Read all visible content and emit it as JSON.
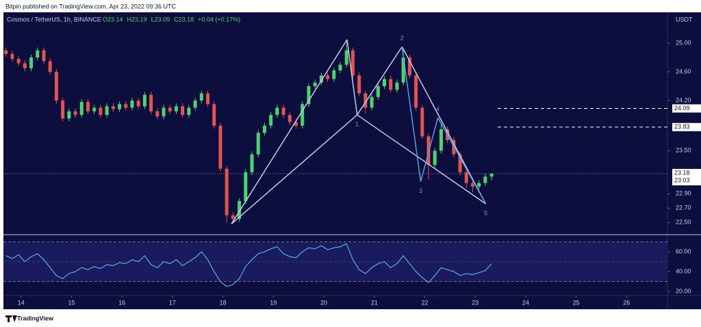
{
  "header": {
    "text": "Bitpin published on TradingView.com, Apr 23, 2022 09:36 UTC"
  },
  "footer": {
    "brand": "TradingView"
  },
  "chart_data": [
    {
      "type": "candlestick",
      "symbol": "Cosmos / TetherUS, 1h, BINANCE",
      "legend_values": [
        "O23.14",
        "H23.19",
        "L23.09",
        "C23.18",
        "+0.04 (+0.17%)"
      ],
      "currency": "USDT",
      "up_color": "#4cd46c",
      "down_color": "#e5524f",
      "xlim": [
        13.65,
        26.81
      ],
      "ylim": [
        22.34,
        25.43
      ],
      "yticks": [
        {
          "value": 22.5,
          "label": "22.50"
        },
        {
          "value": 22.7,
          "label": "22.70"
        },
        {
          "value": 22.9,
          "label": "22.90"
        },
        {
          "value": 23.5,
          "label": "23.50"
        },
        {
          "value": 24.2,
          "label": "24.20"
        },
        {
          "value": 24.6,
          "label": "24.60"
        },
        {
          "value": 25,
          "label": "25.00"
        }
      ],
      "levels": [
        24.09,
        23.83
      ],
      "last_price": 23.18,
      "countdown": "23:03",
      "x": [
        13.7,
        13.825,
        13.95,
        14.075,
        14.2,
        14.325,
        14.45,
        14.575,
        14.7,
        14.825,
        14.95,
        15.075,
        15.2,
        15.325,
        15.45,
        15.575,
        15.7,
        15.825,
        15.95,
        16.075,
        16.2,
        16.325,
        16.45,
        16.575,
        16.7,
        16.825,
        16.95,
        17.075,
        17.2,
        17.325,
        17.45,
        17.575,
        17.7,
        17.825,
        17.95,
        18.075,
        18.2,
        18.325,
        18.45,
        18.575,
        18.7,
        18.825,
        18.95,
        19.075,
        19.2,
        19.325,
        19.45,
        19.575,
        19.7,
        19.825,
        19.95,
        20.075,
        20.2,
        20.325,
        20.45,
        20.575,
        20.7,
        20.825,
        20.95,
        21.075,
        21.2,
        21.325,
        21.45,
        21.575,
        21.7,
        21.825,
        21.95,
        22.075,
        22.2,
        22.325,
        22.45,
        22.575,
        22.7,
        22.825,
        22.95,
        23.075,
        23.2,
        23.325
      ],
      "open": [
        24.9,
        24.85,
        24.78,
        24.72,
        24.65,
        24.8,
        24.9,
        24.75,
        24.6,
        24.2,
        23.95,
        24.05,
        24.0,
        24.18,
        24.05,
        24.1,
        24.0,
        24.12,
        24.08,
        24.15,
        24.1,
        24.2,
        24.12,
        24.28,
        24.05,
        23.98,
        24.1,
        24.05,
        24.12,
        24.0,
        24.1,
        24.2,
        24.3,
        24.15,
        23.85,
        23.25,
        22.6,
        22.55,
        22.8,
        23.2,
        23.45,
        23.75,
        23.85,
        24.0,
        24.1,
        24.0,
        23.9,
        23.85,
        24.15,
        24.4,
        24.45,
        24.55,
        24.5,
        24.62,
        24.7,
        24.9,
        24.55,
        24.3,
        24.1,
        24.25,
        24.4,
        24.5,
        24.35,
        24.45,
        24.8,
        24.55,
        24.1,
        23.7,
        23.3,
        23.5,
        23.8,
        23.65,
        23.45,
        23.2,
        23.05,
        23.0,
        23.05,
        23.14
      ],
      "high": [
        24.94,
        24.89,
        24.82,
        24.76,
        24.84,
        24.94,
        24.94,
        24.79,
        24.64,
        24.24,
        24.09,
        24.09,
        24.22,
        24.22,
        24.14,
        24.14,
        24.16,
        24.16,
        24.19,
        24.19,
        24.24,
        24.24,
        24.32,
        24.32,
        24.09,
        24.14,
        24.14,
        24.16,
        24.16,
        24.14,
        24.24,
        24.34,
        24.34,
        24.19,
        23.89,
        23.29,
        22.64,
        22.84,
        23.24,
        23.49,
        23.79,
        23.89,
        24.04,
        24.14,
        24.14,
        24.04,
        23.94,
        24.19,
        24.44,
        24.49,
        24.59,
        24.59,
        24.66,
        24.74,
        25.02,
        24.94,
        24.59,
        24.34,
        24.29,
        24.44,
        24.54,
        24.54,
        24.49,
        24.92,
        24.84,
        24.59,
        24.14,
        23.74,
        23.54,
        23.88,
        23.84,
        23.69,
        23.49,
        23.24,
        23.09,
        23.09,
        23.18,
        23.19
      ],
      "low": [
        24.81,
        24.74,
        24.68,
        24.61,
        24.61,
        24.76,
        24.71,
        24.56,
        24.16,
        23.91,
        23.91,
        23.96,
        23.96,
        24.01,
        24.01,
        23.96,
        23.96,
        24.04,
        24.04,
        24.06,
        24.06,
        24.08,
        24.08,
        24.01,
        23.94,
        23.94,
        24.01,
        24.01,
        23.96,
        23.96,
        24.06,
        24.16,
        24.11,
        23.81,
        23.21,
        22.5,
        22.51,
        22.51,
        22.76,
        23.16,
        23.41,
        23.71,
        23.81,
        23.96,
        23.96,
        23.86,
        23.81,
        23.81,
        24.11,
        24.36,
        24.41,
        24.46,
        24.46,
        24.58,
        24.66,
        24.51,
        24.26,
        24.02,
        24.06,
        24.21,
        24.36,
        24.31,
        24.31,
        24.41,
        24.51,
        24.06,
        23.66,
        23.1,
        23.26,
        23.46,
        23.61,
        23.41,
        23.16,
        22.98,
        22.92,
        22.96,
        23.01,
        23.09
      ],
      "close": [
        24.85,
        24.78,
        24.72,
        24.65,
        24.8,
        24.9,
        24.75,
        24.6,
        24.2,
        23.95,
        24.05,
        24.0,
        24.18,
        24.05,
        24.1,
        24.0,
        24.12,
        24.08,
        24.15,
        24.1,
        24.2,
        24.12,
        24.28,
        24.05,
        23.98,
        24.1,
        24.05,
        24.12,
        24.0,
        24.1,
        24.2,
        24.3,
        24.15,
        23.85,
        23.25,
        22.6,
        22.55,
        22.8,
        23.2,
        23.45,
        23.75,
        23.85,
        24.0,
        24.1,
        24.0,
        23.9,
        23.85,
        24.15,
        24.4,
        24.45,
        24.55,
        24.5,
        24.62,
        24.7,
        24.9,
        24.55,
        24.3,
        24.1,
        24.25,
        24.4,
        24.5,
        24.35,
        24.45,
        24.8,
        24.55,
        24.1,
        23.7,
        23.3,
        23.5,
        23.8,
        23.65,
        23.45,
        23.2,
        23.05,
        23.0,
        23.05,
        23.14,
        23.18
      ],
      "pattern": {
        "points": [
          {
            "x": 18.17,
            "y": 22.48
          },
          {
            "x": 20.46,
            "y": 25.05
          },
          {
            "x": 20.66,
            "y": 24.0,
            "label": "1"
          },
          {
            "x": 21.55,
            "y": 24.95,
            "label": "2"
          },
          {
            "x": 21.92,
            "y": 23.07,
            "label": "3"
          },
          {
            "x": 22.26,
            "y": 23.96,
            "label": "4"
          },
          {
            "x": 23.21,
            "y": 22.76,
            "label": "5"
          }
        ]
      }
    },
    {
      "type": "line",
      "color": "#4fa3e0",
      "xlim": [
        13.65,
        26.81
      ],
      "xticks": [
        14,
        15,
        16,
        17,
        18,
        19,
        20,
        21,
        22,
        23,
        24,
        25,
        26
      ],
      "ylim": [
        15.9,
        76.5
      ],
      "yticks": [
        {
          "value": 20,
          "label": "20.00"
        },
        {
          "value": 40,
          "label": "40.00"
        },
        {
          "value": 60,
          "label": "60.00"
        }
      ],
      "band": [
        30,
        70
      ],
      "x": [
        13.7,
        13.825,
        13.95,
        14.075,
        14.2,
        14.325,
        14.45,
        14.575,
        14.7,
        14.825,
        14.95,
        15.075,
        15.2,
        15.325,
        15.45,
        15.575,
        15.7,
        15.825,
        15.95,
        16.075,
        16.2,
        16.325,
        16.45,
        16.575,
        16.7,
        16.825,
        16.95,
        17.075,
        17.2,
        17.325,
        17.45,
        17.575,
        17.7,
        17.825,
        17.95,
        18.075,
        18.2,
        18.325,
        18.45,
        18.575,
        18.7,
        18.825,
        18.95,
        19.075,
        19.2,
        19.325,
        19.45,
        19.575,
        19.7,
        19.825,
        19.95,
        20.075,
        20.2,
        20.325,
        20.45,
        20.575,
        20.7,
        20.825,
        20.95,
        21.075,
        21.2,
        21.325,
        21.45,
        21.575,
        21.7,
        21.825,
        21.95,
        22.075,
        22.2,
        22.325,
        22.45,
        22.575,
        22.7,
        22.825,
        22.95,
        23.075,
        23.2,
        23.325
      ],
      "values": [
        56,
        53,
        57,
        50,
        55,
        58,
        52,
        44,
        36,
        33,
        38,
        40,
        44,
        42,
        45,
        43,
        47,
        46,
        49,
        48,
        52,
        50,
        56,
        47,
        44,
        50,
        48,
        52,
        46,
        50,
        54,
        60,
        52,
        40,
        30,
        25,
        27,
        33,
        45,
        52,
        58,
        60,
        63,
        65,
        58,
        55,
        54,
        60,
        64,
        63,
        66,
        62,
        64,
        65,
        68,
        52,
        42,
        38,
        44,
        48,
        50,
        44,
        48,
        56,
        48,
        40,
        34,
        29,
        36,
        44,
        42,
        40,
        36,
        38,
        37,
        39,
        41,
        48
      ]
    }
  ]
}
